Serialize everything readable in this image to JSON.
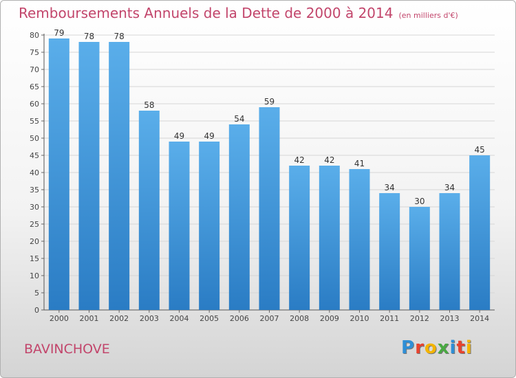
{
  "header": {
    "title": "Remboursements Annuels de la Dette de 2000 à 2014",
    "subtitle": "(en milliers d'€)"
  },
  "footer": {
    "place": "BAVINCHOVE",
    "logo_text": "Proxiti",
    "logo_letters": [
      {
        "ch": "P",
        "color": "#2f8fd6"
      },
      {
        "ch": "r",
        "color": "#e8432e"
      },
      {
        "ch": "o",
        "color": "#f4b400"
      },
      {
        "ch": "x",
        "color": "#49a942"
      },
      {
        "ch": "i",
        "color": "#2f8fd6"
      },
      {
        "ch": "t",
        "color": "#e8432e"
      },
      {
        "ch": "i",
        "color": "#f4b400"
      }
    ]
  },
  "chart_data": {
    "type": "bar",
    "title": "Remboursements Annuels de la Dette de 2000 à 2014",
    "subtitle": "(en milliers d'€)",
    "categories": [
      "2000",
      "2001",
      "2002",
      "2003",
      "2004",
      "2005",
      "2006",
      "2007",
      "2008",
      "2009",
      "2010",
      "2011",
      "2012",
      "2013",
      "2014"
    ],
    "values": [
      79,
      78,
      78,
      58,
      49,
      49,
      54,
      59,
      42,
      42,
      41,
      34,
      30,
      34,
      45
    ],
    "ylim": [
      0,
      80
    ],
    "yticks": [
      0,
      5,
      10,
      15,
      20,
      25,
      30,
      35,
      40,
      45,
      50,
      55,
      60,
      65,
      70,
      75,
      80
    ],
    "grid": true,
    "bar_color": "#4ea4e4",
    "bar_color_dark": "#2a7cc4",
    "xlabel": "",
    "ylabel": ""
  }
}
